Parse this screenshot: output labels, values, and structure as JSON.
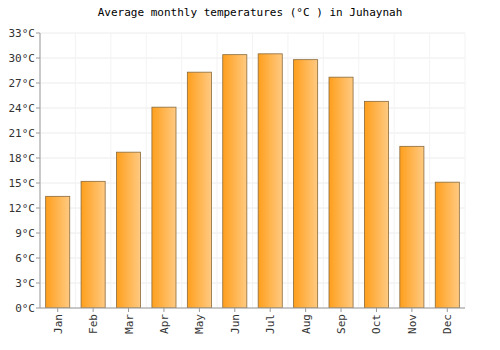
{
  "chart_data": {
    "type": "bar",
    "title": "Average monthly temperatures (°C ) in Juhaynah",
    "categories": [
      "Jan",
      "Feb",
      "Mar",
      "Apr",
      "May",
      "Jun",
      "Jul",
      "Aug",
      "Sep",
      "Oct",
      "Nov",
      "Dec"
    ],
    "values": [
      13.4,
      15.2,
      18.7,
      24.1,
      28.3,
      30.4,
      30.5,
      29.8,
      27.7,
      24.8,
      19.4,
      15.1
    ],
    "color": "#ff9f1c",
    "ylim": [
      0,
      33
    ],
    "yticks": [
      {
        "value": 0,
        "label": "0°C"
      },
      {
        "value": 3,
        "label": "3°C"
      },
      {
        "value": 6,
        "label": "6°C"
      },
      {
        "value": 9,
        "label": "9°C"
      },
      {
        "value": 12,
        "label": "12°C"
      },
      {
        "value": 15,
        "label": "15°C"
      },
      {
        "value": 18,
        "label": "18°C"
      },
      {
        "value": 21,
        "label": "21°C"
      },
      {
        "value": 24,
        "label": "24°C"
      },
      {
        "value": 27,
        "label": "27°C"
      },
      {
        "value": 30,
        "label": "30°C"
      },
      {
        "value": 33,
        "label": "33°C"
      }
    ],
    "grid": true
  }
}
